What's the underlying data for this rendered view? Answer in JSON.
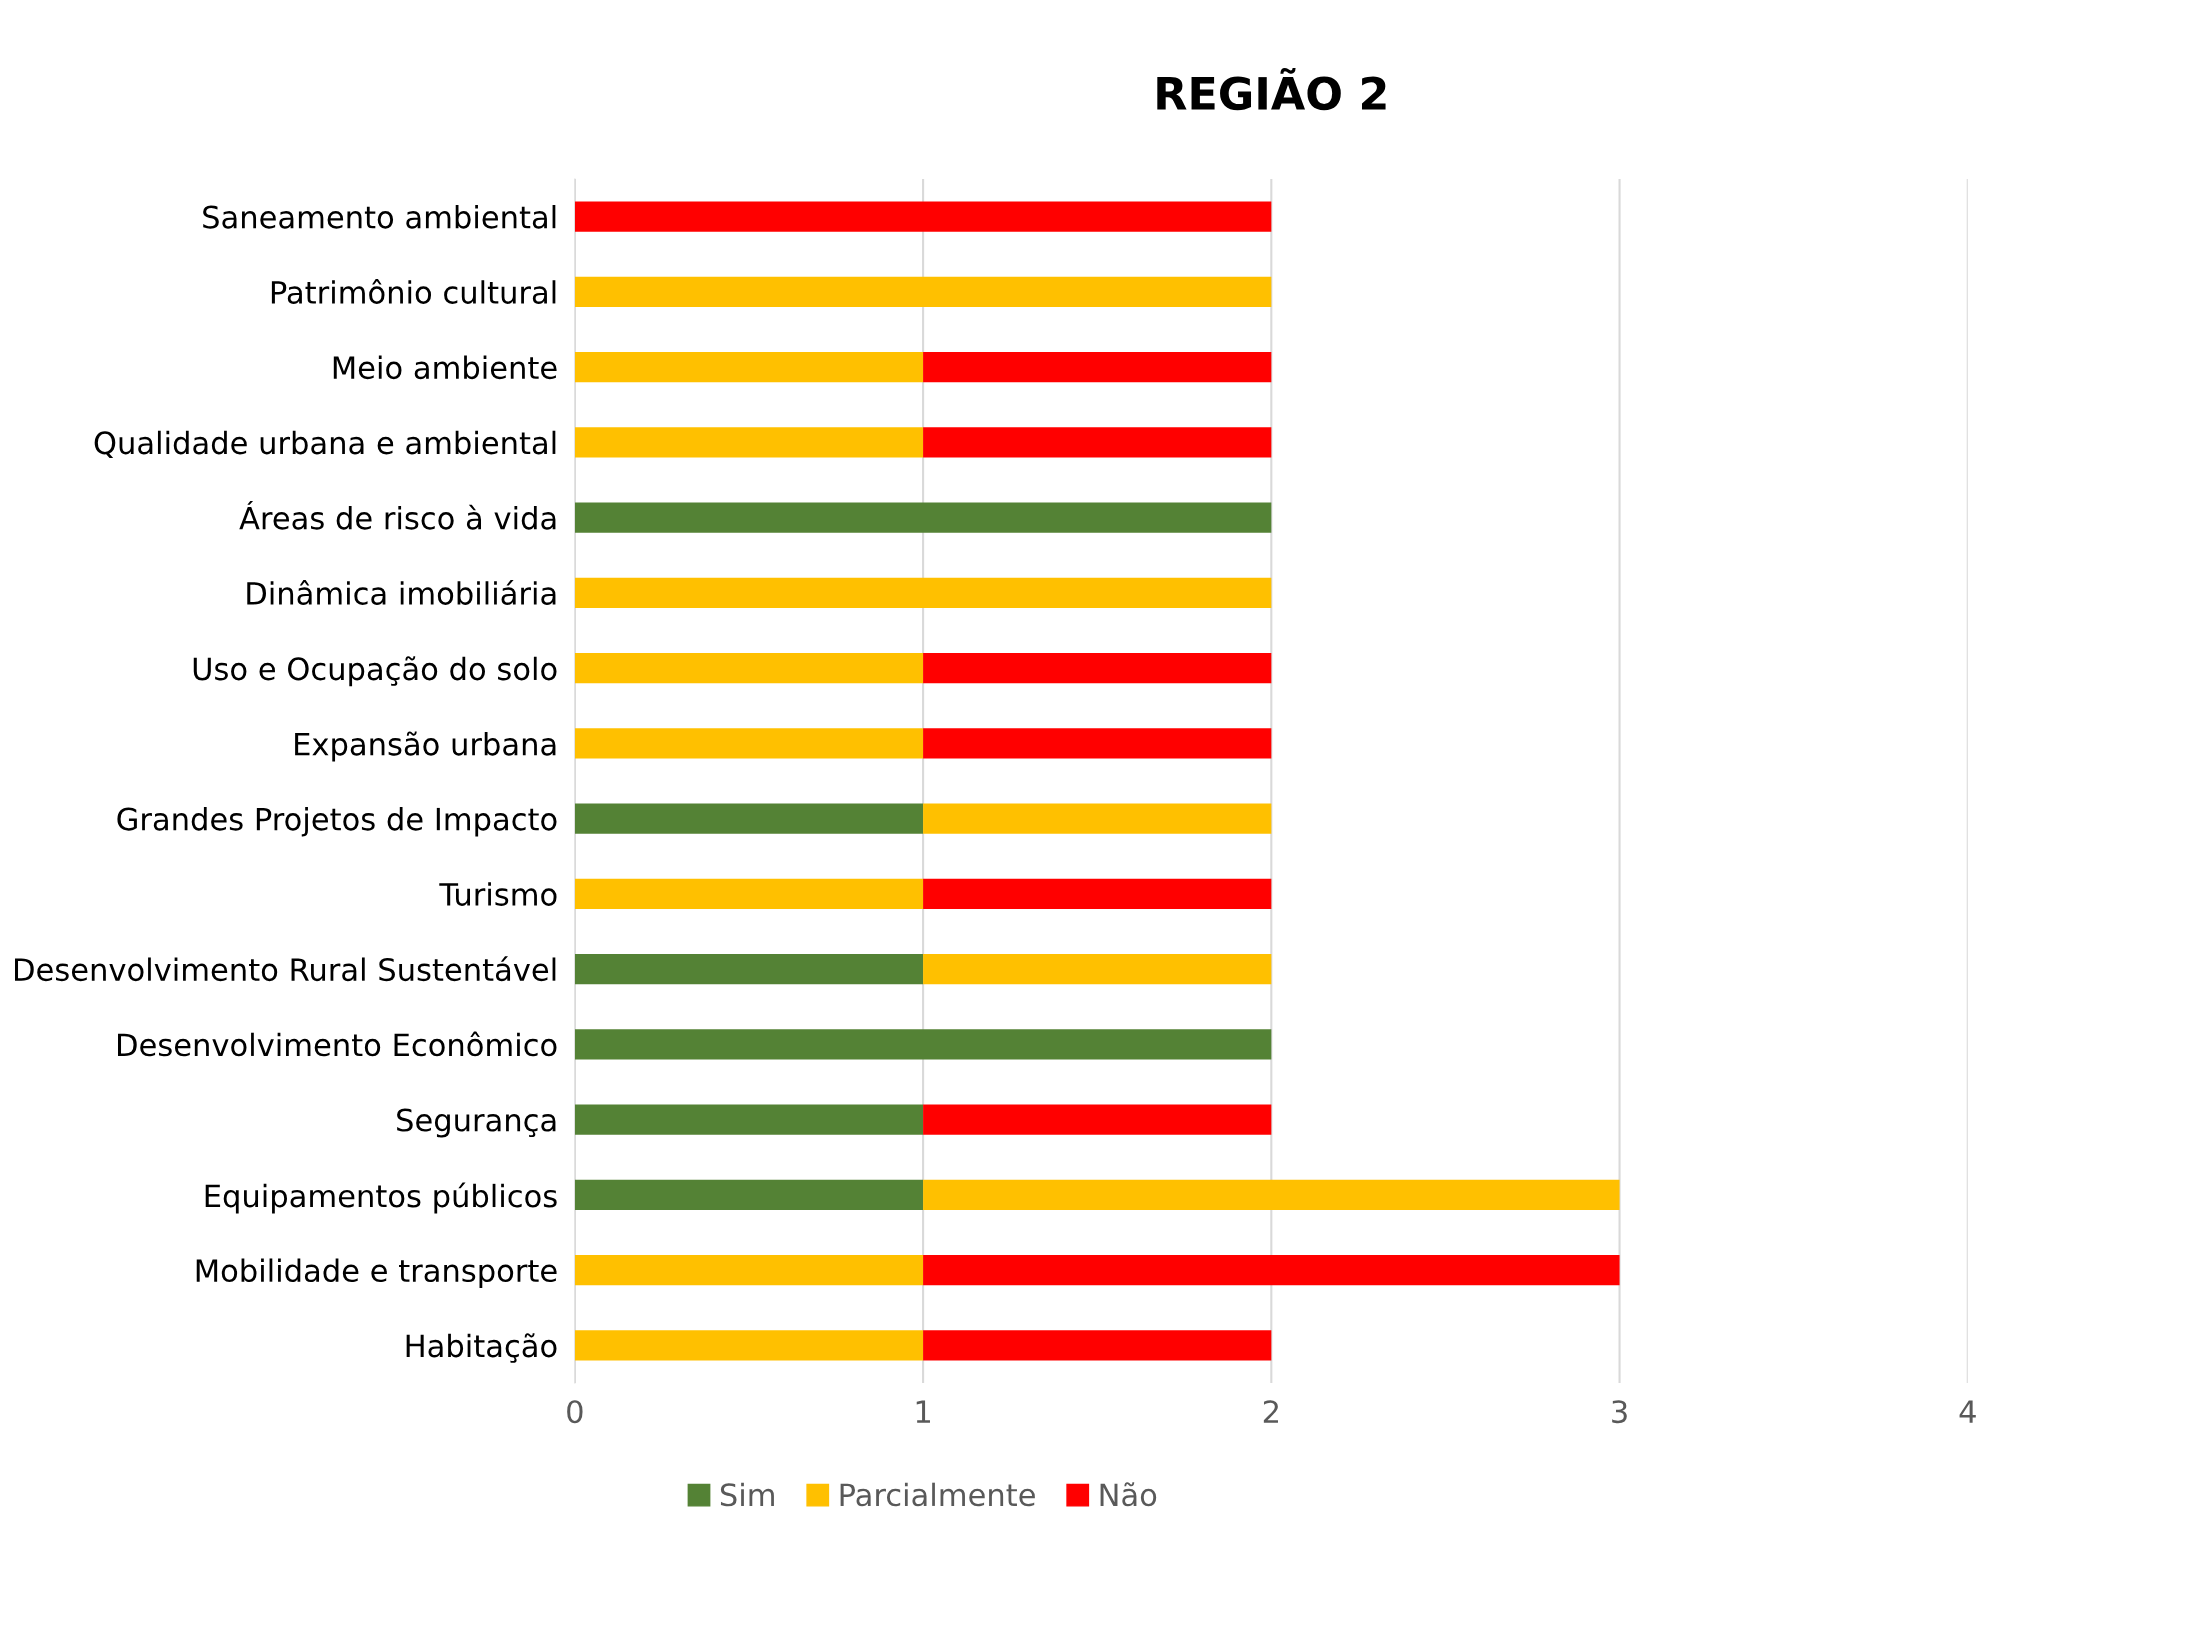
{
  "chart_data": {
    "type": "bar",
    "orientation": "horizontal",
    "stacked": true,
    "title": "REGIÃO 2",
    "categories": [
      "Saneamento ambiental",
      "Patrimônio cultural",
      "Meio ambiente",
      "Qualidade urbana e ambiental",
      "Áreas de risco à vida",
      "Dinâmica imobiliária",
      "Uso e Ocupação do solo",
      "Expansão urbana",
      "Grandes Projetos de Impacto",
      "Turismo",
      "Desenvolvimento Rural Sustentável",
      "Desenvolvimento Econômico",
      "Segurança",
      "Equipamentos públicos",
      "Mobilidade e transporte",
      "Habitação"
    ],
    "series": [
      {
        "name": "Sim",
        "color": "#548235",
        "values": [
          0,
          0,
          0,
          0,
          2,
          0,
          0,
          0,
          1,
          0,
          1,
          2,
          1,
          1,
          0,
          0
        ]
      },
      {
        "name": "Parcialmente",
        "color": "#ffc000",
        "values": [
          0,
          2,
          1,
          1,
          0,
          2,
          1,
          1,
          1,
          1,
          1,
          0,
          0,
          2,
          1,
          1
        ]
      },
      {
        "name": "Não",
        "color": "#ff0000",
        "values": [
          2,
          0,
          1,
          1,
          0,
          0,
          1,
          1,
          0,
          1,
          0,
          0,
          1,
          0,
          2,
          1
        ]
      }
    ],
    "xlim": [
      0,
      4
    ],
    "xticks": [
      0,
      1,
      2,
      3,
      4
    ],
    "grid": "x",
    "legend": "bottom"
  }
}
